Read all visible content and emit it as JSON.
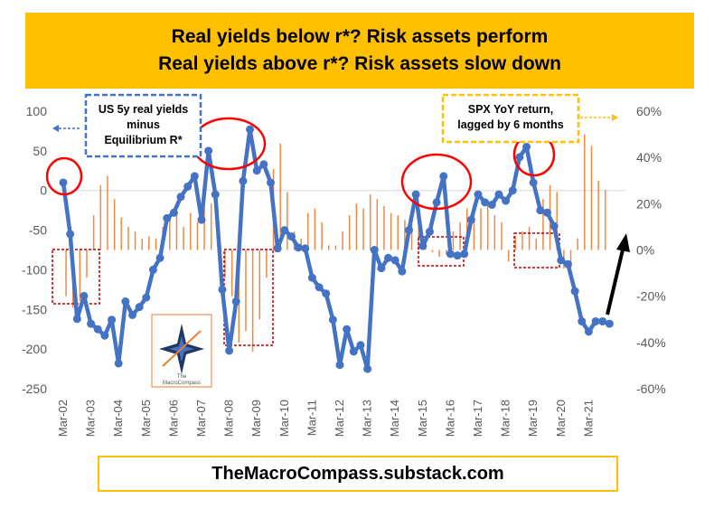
{
  "banner": {
    "line1": "Real yields below r*? Risk assets perform",
    "line2": "Real yields above r*? Risk assets slow down"
  },
  "footer": {
    "text": "TheMacroCompass.substack.com"
  },
  "logo": {
    "text1": "The",
    "text2": "MacroCompass"
  },
  "chart_data": {
    "type": "line",
    "annotations": [
      {
        "text": [
          "US 5y real yields",
          "minus",
          "Equilibrium R*"
        ],
        "color": "#4472c4",
        "arrow": "left"
      },
      {
        "text": [
          "SPX YoY return,",
          "lagged by 6 months"
        ],
        "color": "#ffc000",
        "arrow": "right"
      }
    ],
    "y_left": {
      "ticks": [
        100,
        50,
        0,
        -50,
        -100,
        -150,
        -200,
        -250
      ],
      "range": [
        -250,
        100
      ]
    },
    "y_right": {
      "ticks": [
        "60%",
        "40%",
        "20%",
        "0%",
        "-20%",
        "-40%",
        "-60%"
      ],
      "range": [
        -60,
        60
      ]
    },
    "x_labels": [
      "Mar-02",
      "Mar-03",
      "Mar-04",
      "Mar-05",
      "Mar-06",
      "Mar-07",
      "Mar-08",
      "Mar-09",
      "Mar-10",
      "Mar-11",
      "Mar-12",
      "Mar-13",
      "Mar-14",
      "Mar-15",
      "Mar-16",
      "Mar-17",
      "Mar-18",
      "Mar-19",
      "Mar-20",
      "Mar-21"
    ],
    "series": [
      {
        "color": "#4472c4",
        "axis": "left",
        "x": [
          2002.2,
          2002.45,
          2002.7,
          2002.95,
          2003.2,
          2003.45,
          2003.7,
          2003.95,
          2004.2,
          2004.45,
          2004.7,
          2004.95,
          2005.2,
          2005.45,
          2005.7,
          2005.95,
          2006.2,
          2006.45,
          2006.7,
          2006.95,
          2007.2,
          2007.45,
          2007.7,
          2007.95,
          2008.2,
          2008.45,
          2008.7,
          2008.95,
          2009.2,
          2009.45,
          2009.7,
          2009.95,
          2010.2,
          2010.45,
          2010.7,
          2010.95,
          2011.2,
          2011.45,
          2011.7,
          2011.95,
          2012.2,
          2012.45,
          2012.7,
          2012.95,
          2013.2,
          2013.45,
          2013.7,
          2013.95,
          2014.2,
          2014.45,
          2014.7,
          2014.95,
          2015.2,
          2015.45,
          2015.7,
          2015.95,
          2016.2,
          2016.45,
          2016.7,
          2016.95,
          2017.2,
          2017.45,
          2017.7,
          2017.95,
          2018.2,
          2018.45,
          2018.7,
          2018.95,
          2019.2,
          2019.45,
          2019.7,
          2019.95,
          2020.2,
          2020.45,
          2020.7,
          2020.95,
          2021.2,
          2021.45,
          2021.7,
          2021.95
        ],
        "values": [
          10,
          -55,
          -162,
          -133,
          -168,
          -175,
          -183,
          -163,
          -218,
          -140,
          -157,
          -147,
          -135,
          -100,
          -85,
          -35,
          -28,
          -8,
          5,
          18,
          -37,
          50,
          -5,
          -125,
          -202,
          -140,
          12,
          77,
          25,
          33,
          10,
          -73,
          -50,
          -58,
          -72,
          -73,
          -110,
          -122,
          -130,
          -163,
          -220,
          -175,
          -203,
          -195,
          -225,
          -75,
          -98,
          -85,
          -88,
          -102,
          -50,
          -5,
          -70,
          -52,
          -15,
          18,
          -80,
          -82,
          -80,
          -37,
          -5,
          -15,
          -18,
          -5,
          -13,
          0,
          42,
          55,
          10,
          -25,
          -28,
          -45,
          -88,
          -93,
          -127,
          -165,
          -178,
          -165,
          -165,
          -168
        ]
      },
      {
        "color": "#ed7d31",
        "axis": "right",
        "type": "bar",
        "x": [
          2002.3,
          2002.55,
          2002.8,
          2003.05,
          2003.3,
          2003.55,
          2003.8,
          2004.05,
          2004.3,
          2004.55,
          2004.8,
          2005.05,
          2005.3,
          2005.55,
          2005.8,
          2006.05,
          2006.3,
          2006.55,
          2006.8,
          2007.05,
          2007.3,
          2007.55,
          2007.8,
          2008.05,
          2008.3,
          2008.55,
          2008.8,
          2009.05,
          2009.3,
          2009.55,
          2009.8,
          2010.05,
          2010.3,
          2010.55,
          2010.8,
          2011.05,
          2011.3,
          2011.55,
          2011.8,
          2012.05,
          2012.3,
          2012.55,
          2012.8,
          2013.05,
          2013.3,
          2013.55,
          2013.8,
          2014.05,
          2014.3,
          2014.55,
          2014.8,
          2015.05,
          2015.3,
          2015.55,
          2015.8,
          2016.05,
          2016.3,
          2016.55,
          2016.8,
          2017.05,
          2017.3,
          2017.55,
          2017.8,
          2018.05,
          2018.3,
          2018.55,
          2018.8,
          2019.05,
          2019.3,
          2019.55,
          2019.8,
          2020.05,
          2020.3,
          2020.55,
          2020.8,
          2021.05,
          2021.3,
          2021.55,
          2021.8
        ],
        "values": [
          -20,
          -25,
          -22,
          -12,
          15,
          28,
          32,
          22,
          14,
          10,
          8,
          5,
          6,
          5,
          10,
          13,
          15,
          10,
          16,
          12,
          18,
          20,
          14,
          -12,
          -20,
          -40,
          -35,
          -44,
          -30,
          -12,
          35,
          46,
          25,
          8,
          5,
          16,
          18,
          12,
          2,
          2,
          8,
          15,
          20,
          18,
          24,
          22,
          19,
          16,
          15,
          13,
          12,
          10,
          3,
          -1,
          -3,
          -2,
          8,
          12,
          18,
          16,
          18,
          20,
          15,
          12,
          -5,
          6,
          8,
          10,
          5,
          22,
          28,
          25,
          -8,
          -10,
          5,
          50,
          45,
          30,
          26
        ]
      }
    ]
  }
}
